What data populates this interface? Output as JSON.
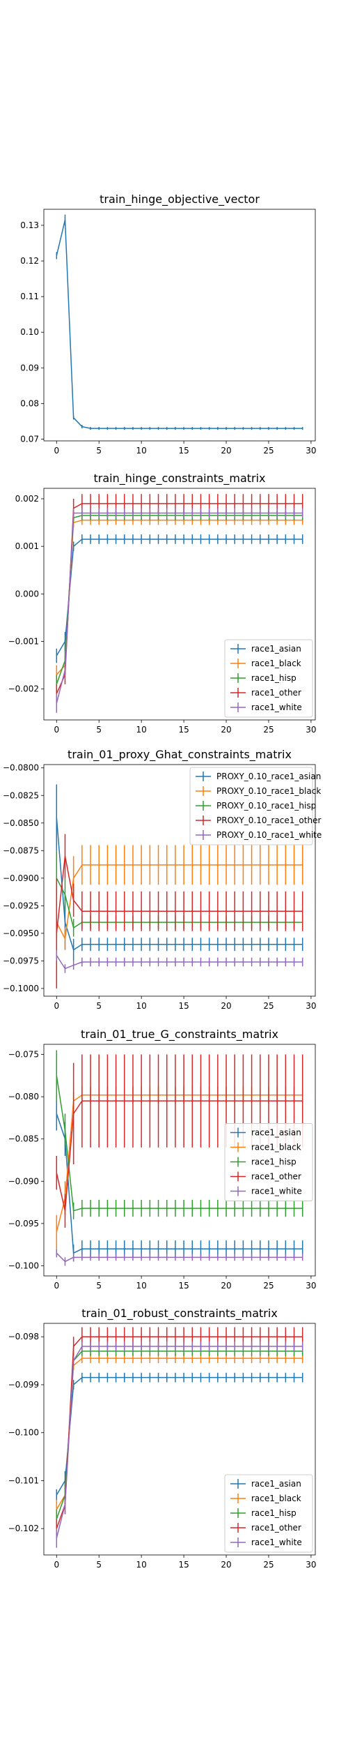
{
  "chart_data": [
    {
      "type": "line",
      "title": "train_hinge_objective_vector",
      "xlabel": "",
      "ylabel": "",
      "xlim": [
        -1.5,
        30.5
      ],
      "ylim": [
        0.0695,
        0.1345
      ],
      "xticks": [
        "0",
        "5",
        "10",
        "15",
        "20",
        "25",
        "30"
      ],
      "yticks": [
        "0.07",
        "0.08",
        "0.09",
        "0.10",
        "0.11",
        "0.12",
        "0.13"
      ],
      "legend": false,
      "series": [
        {
          "color": "#1f77b4",
          "start": [
            0.1215,
            0.1315,
            0.076,
            0.0735
          ],
          "steady": 0.073,
          "err": [
            0.001,
            0.0015,
            0.0005,
            0.0005
          ],
          "steady_err": 0.0004
        }
      ]
    },
    {
      "type": "line",
      "title": "train_hinge_constraints_matrix",
      "xlabel": "",
      "ylabel": "",
      "xlim": [
        -1.5,
        30.5
      ],
      "ylim": [
        -0.00265,
        0.00222
      ],
      "xticks": [
        "0",
        "5",
        "10",
        "15",
        "20",
        "25",
        "30"
      ],
      "yticks": [
        "−0.002",
        "−0.001",
        "0.000",
        "0.001",
        "0.002"
      ],
      "legend": true,
      "legend_loc": "lower right",
      "series": [
        {
          "name": "race1_asian",
          "color": "#1f77b4",
          "start": [
            -0.0013,
            -0.001,
            0.001
          ],
          "steady": 0.00115,
          "err": [
            0.00015,
            0.0002,
            0.0001
          ],
          "steady_err": 0.0001
        },
        {
          "name": "race1_black",
          "color": "#ff7f0e",
          "start": [
            -0.0017,
            -0.0015,
            0.0015
          ],
          "steady": 0.00155,
          "err": [
            0.0002,
            0.0002,
            0.0001
          ],
          "steady_err": 0.0001
        },
        {
          "name": "race1_hisp",
          "color": "#2ca02c",
          "start": [
            -0.0019,
            -0.0014,
            0.0016
          ],
          "steady": 0.00165,
          "err": [
            0.0002,
            0.0003,
            0.0001
          ],
          "steady_err": 0.0001
        },
        {
          "name": "race1_other",
          "color": "#d62728",
          "start": [
            -0.0021,
            -0.0017,
            0.0018
          ],
          "steady": 0.0019,
          "err": [
            0.0002,
            0.0002,
            0.0002
          ],
          "steady_err": 0.0002
        },
        {
          "name": "race1_white",
          "color": "#9467bd",
          "start": [
            -0.0023,
            -0.0016,
            0.0017
          ],
          "steady": 0.0017,
          "err": [
            0.0002,
            0.0002,
            0.0001
          ],
          "steady_err": 0.0001
        }
      ]
    },
    {
      "type": "line",
      "title": "train_01_proxy_Ghat_constraints_matrix",
      "xlabel": "",
      "ylabel": "",
      "xlim": [
        -1.5,
        30.5
      ],
      "ylim": [
        -0.1007,
        -0.0797
      ],
      "xticks": [
        "0",
        "5",
        "10",
        "15",
        "20",
        "25",
        "30"
      ],
      "yticks": [
        "−0.0800",
        "−0.0825",
        "−0.0850",
        "−0.0875",
        "−0.0900",
        "−0.0925",
        "−0.0950",
        "−0.0975",
        "−0.1000"
      ],
      "legend": true,
      "legend_loc": "upper right",
      "series": [
        {
          "name": "PROXY_0.10_race1_asian",
          "color": "#1f77b4",
          "start": [
            -0.0845,
            -0.094,
            -0.0965
          ],
          "steady": -0.096,
          "err": [
            0.003,
            0.0025,
            0.001
          ],
          "steady_err": 0.0006
        },
        {
          "name": "PROXY_0.10_race1_black",
          "color": "#ff7f0e",
          "start": [
            -0.094,
            -0.0955,
            -0.09
          ],
          "steady": -0.0888,
          "err": [
            0.0015,
            0.001,
            0.002
          ],
          "steady_err": 0.0018
        },
        {
          "name": "PROXY_0.10_race1_hisp",
          "color": "#2ca02c",
          "start": [
            -0.09,
            -0.0915,
            -0.0945
          ],
          "steady": -0.094,
          "err": [
            0.0025,
            0.0015,
            0.0008
          ],
          "steady_err": 0.0006
        },
        {
          "name": "PROXY_0.10_race1_other",
          "color": "#d62728",
          "start": [
            -0.095,
            -0.088,
            -0.092
          ],
          "steady": -0.093,
          "err": [
            0.005,
            0.002,
            0.0015
          ],
          "steady_err": 0.0018
        },
        {
          "name": "PROXY_0.10_race1_white",
          "color": "#9467bd",
          "start": [
            -0.097,
            -0.0982,
            -0.0979
          ],
          "steady": -0.0976,
          "err": [
            0.0005,
            0.0004,
            0.0004
          ],
          "steady_err": 0.0004
        }
      ]
    },
    {
      "type": "line",
      "title": "train_01_true_G_constraints_matrix",
      "xlabel": "",
      "ylabel": "",
      "xlim": [
        -1.5,
        30.5
      ],
      "ylim": [
        -0.1012,
        -0.0738
      ],
      "xticks": [
        "0",
        "5",
        "10",
        "15",
        "20",
        "25",
        "30"
      ],
      "yticks": [
        "−0.075",
        "−0.080",
        "−0.085",
        "−0.090",
        "−0.095",
        "−0.100"
      ],
      "legend": true,
      "legend_loc": "center right",
      "series": [
        {
          "name": "race1_asian",
          "color": "#1f77b4",
          "start": [
            -0.082,
            -0.085,
            -0.0985
          ],
          "steady": -0.098,
          "err": [
            0.002,
            0.002,
            0.001
          ],
          "steady_err": 0.001
        },
        {
          "name": "race1_black",
          "color": "#ff7f0e",
          "start": [
            -0.096,
            -0.092,
            -0.0805
          ],
          "steady": -0.0798,
          "err": [
            0.002,
            0.002,
            0.001
          ],
          "steady_err": 0.001
        },
        {
          "name": "race1_hisp",
          "color": "#2ca02c",
          "start": [
            -0.0775,
            -0.084,
            -0.0935
          ],
          "steady": -0.0932,
          "err": [
            0.003,
            0.002,
            0.001
          ],
          "steady_err": 0.001
        },
        {
          "name": "race1_other",
          "color": "#d62728",
          "start": [
            -0.089,
            -0.0935,
            -0.082
          ],
          "steady": -0.0805,
          "err": [
            0.002,
            0.002,
            0.006
          ],
          "steady_err": 0.0055
        },
        {
          "name": "race1_white",
          "color": "#9467bd",
          "start": [
            -0.0985,
            -0.0995,
            -0.099
          ],
          "steady": -0.099,
          "err": [
            0.0005,
            0.0005,
            0.0005
          ],
          "steady_err": 0.0004
        }
      ]
    },
    {
      "type": "line",
      "title": "train_01_robust_constraints_matrix",
      "xlabel": "",
      "ylabel": "",
      "xlim": [
        -1.5,
        30.5
      ],
      "ylim": [
        -0.10255,
        -0.09772
      ],
      "xticks": [
        "0",
        "5",
        "10",
        "15",
        "20",
        "25",
        "30"
      ],
      "yticks": [
        "−0.098",
        "−0.099",
        "−0.100",
        "−0.101",
        "−0.102"
      ],
      "legend": true,
      "legend_loc": "lower right",
      "series": [
        {
          "name": "race1_asian",
          "color": "#1f77b4",
          "start": [
            -0.1013,
            -0.101,
            -0.099
          ],
          "steady": -0.09885,
          "err": [
            0.00012,
            0.0002,
            0.0001
          ],
          "steady_err": 0.0001
        },
        {
          "name": "race1_black",
          "color": "#ff7f0e",
          "start": [
            -0.1016,
            -0.1013,
            -0.0986
          ],
          "steady": -0.09845,
          "err": [
            0.0002,
            0.0002,
            0.0001
          ],
          "steady_err": 0.0001
        },
        {
          "name": "race1_hisp",
          "color": "#2ca02c",
          "start": [
            -0.1018,
            -0.1013,
            -0.0985
          ],
          "steady": -0.0983,
          "err": [
            0.0002,
            0.0003,
            0.0001
          ],
          "steady_err": 0.0001
        },
        {
          "name": "race1_other",
          "color": "#d62728",
          "start": [
            -0.102,
            -0.1015,
            -0.0982
          ],
          "steady": -0.098,
          "err": [
            0.0002,
            0.0002,
            0.0002
          ],
          "steady_err": 0.0002
        },
        {
          "name": "race1_white",
          "color": "#9467bd",
          "start": [
            -0.1022,
            -0.1015,
            -0.0985
          ],
          "steady": -0.0982,
          "err": [
            0.0002,
            0.0002,
            0.0001
          ],
          "steady_err": 0.0001
        }
      ]
    }
  ]
}
